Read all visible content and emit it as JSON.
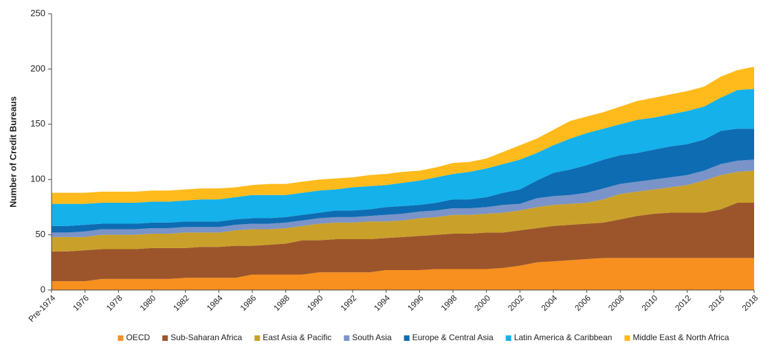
{
  "chart_data": {
    "type": "stacked_area",
    "ylabel": "Number of Credit Bureaus",
    "categories": [
      "Pre-1974",
      null,
      "1976",
      null,
      "1978",
      null,
      "1980",
      null,
      "1982",
      null,
      "1984",
      null,
      "1986",
      null,
      "1988",
      null,
      "1990",
      null,
      "1992",
      null,
      "1994",
      null,
      "1996",
      null,
      "1998",
      null,
      "2000",
      null,
      "2002",
      null,
      "2004",
      null,
      "2006",
      null,
      "2008",
      null,
      "2010",
      null,
      "2012",
      null,
      "2016",
      null,
      "2018"
    ],
    "series": [
      {
        "name": "OECD",
        "color": "#f7901e",
        "values": [
          8,
          8,
          8,
          10,
          10,
          10,
          10,
          10,
          11,
          11,
          11,
          11,
          14,
          14,
          14,
          14,
          16,
          16,
          16,
          16,
          18,
          18,
          18,
          19,
          19,
          19,
          19,
          20,
          22,
          25,
          26,
          27,
          28,
          29,
          29,
          29,
          29,
          29,
          29,
          29,
          29,
          29,
          29
        ]
      },
      {
        "name": "Sub-Saharan Africa",
        "color": "#9c552b",
        "values": [
          27,
          27,
          28,
          27,
          27,
          27,
          28,
          28,
          27,
          28,
          28,
          29,
          26,
          27,
          28,
          31,
          29,
          30,
          30,
          30,
          29,
          30,
          31,
          31,
          32,
          32,
          33,
          32,
          32,
          31,
          32,
          32,
          32,
          32,
          35,
          38,
          40,
          41,
          41,
          41,
          44,
          50,
          50
        ]
      },
      {
        "name": "East Asia & Pacific",
        "color": "#c9a12a",
        "values": [
          13,
          13,
          12,
          13,
          13,
          13,
          13,
          13,
          14,
          13,
          13,
          14,
          15,
          14,
          14,
          13,
          15,
          15,
          15,
          16,
          15,
          15,
          16,
          16,
          17,
          17,
          17,
          18,
          18,
          19,
          19,
          19,
          19,
          21,
          23,
          22,
          22,
          23,
          25,
          29,
          31,
          28,
          29
        ]
      },
      {
        "name": "South Asia",
        "color": "#7a93c8",
        "values": [
          4,
          4,
          5,
          5,
          5,
          5,
          5,
          5,
          5,
          5,
          5,
          5,
          5,
          5,
          5,
          5,
          5,
          5,
          5,
          5,
          6,
          6,
          6,
          6,
          6,
          6,
          6,
          7,
          6,
          8,
          8,
          8,
          9,
          10,
          9,
          9,
          9,
          9,
          9,
          9,
          10,
          10,
          10
        ]
      },
      {
        "name": "Europe & Central Asia",
        "color": "#0e6cb2",
        "values": [
          6,
          6,
          6,
          5,
          5,
          5,
          5,
          5,
          5,
          5,
          5,
          5,
          5,
          5,
          5,
          5,
          5,
          6,
          6,
          6,
          7,
          7,
          6,
          7,
          8,
          8,
          9,
          11,
          13,
          16,
          21,
          23,
          25,
          26,
          26,
          26,
          27,
          28,
          28,
          28,
          30,
          29,
          28
        ]
      },
      {
        "name": "Latin America & Caribbean",
        "color": "#14b1ea",
        "values": [
          20,
          20,
          19,
          19,
          19,
          19,
          19,
          19,
          19,
          20,
          20,
          20,
          21,
          21,
          20,
          20,
          20,
          19,
          21,
          21,
          20,
          21,
          22,
          23,
          23,
          25,
          26,
          26,
          27,
          25,
          25,
          28,
          29,
          28,
          28,
          30,
          29,
          29,
          30,
          30,
          30,
          35,
          36
        ]
      },
      {
        "name": "Middle East & North Africa",
        "color": "#ffba1c",
        "values": [
          10,
          10,
          10,
          10,
          10,
          10,
          10,
          10,
          10,
          10,
          10,
          9,
          9,
          10,
          10,
          10,
          10,
          10,
          9,
          10,
          10,
          10,
          9,
          9,
          10,
          9,
          9,
          11,
          13,
          13,
          14,
          16,
          15,
          15,
          16,
          17,
          18,
          18,
          18,
          18,
          19,
          18,
          20
        ]
      }
    ],
    "ylim": [
      0,
      250
    ],
    "yticks": [
      0,
      50,
      100,
      150,
      200,
      250
    ],
    "grid": false,
    "legend": "bottom"
  }
}
